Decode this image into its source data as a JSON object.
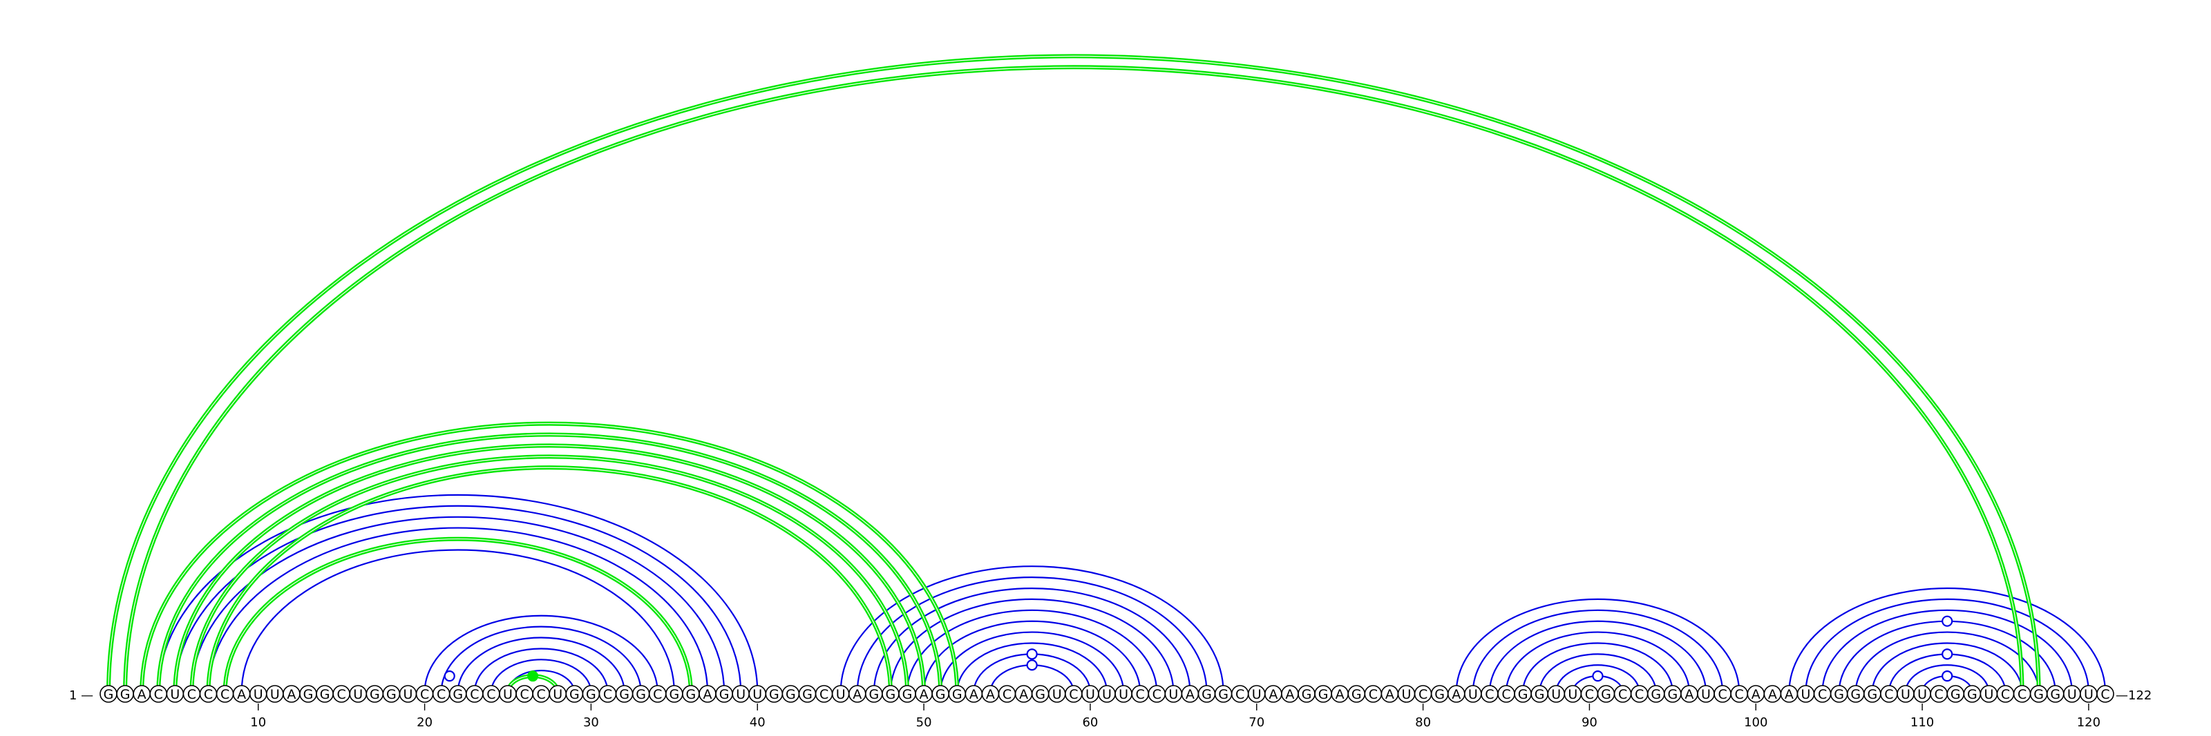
{
  "sequence": "GGACUCCCAUUAGGCUGGUCCGCCUCCUGGCGGCGGAGUUGGGCUAGGGAGGAACAGUCUUUCCUAGGCUAAGGAGCAUCGAUCCGGUUCGCCGGAUCCAAAUCGGGCUUCGGUCCGGUUC",
  "start_label": "1 —",
  "end_label": "—122",
  "ticks": [
    10,
    20,
    30,
    40,
    50,
    60,
    70,
    80,
    90,
    100,
    110,
    120
  ],
  "colors": {
    "blue": "#0000e6",
    "green": "#00e600"
  },
  "pairs": {
    "blue": [
      [
        4,
        40
      ],
      [
        5,
        39
      ],
      [
        6,
        38
      ],
      [
        7,
        37
      ],
      [
        8,
        36
      ],
      [
        9,
        35
      ],
      [
        20,
        34
      ],
      [
        21,
        33
      ],
      [
        22,
        32
      ],
      [
        23,
        31
      ],
      [
        24,
        30
      ],
      [
        25,
        29
      ],
      [
        45,
        68
      ],
      [
        46,
        67
      ],
      [
        47,
        66
      ],
      [
        48,
        65
      ],
      [
        49,
        64
      ],
      [
        50,
        63
      ],
      [
        51,
        62
      ],
      [
        52,
        61
      ],
      [
        53,
        60
      ],
      [
        54,
        59
      ],
      [
        82,
        99
      ],
      [
        83,
        98
      ],
      [
        84,
        97
      ],
      [
        85,
        96
      ],
      [
        86,
        95
      ],
      [
        87,
        94
      ],
      [
        88,
        93
      ],
      [
        89,
        92
      ],
      [
        102,
        121
      ],
      [
        103,
        120
      ],
      [
        104,
        119
      ],
      [
        105,
        118
      ],
      [
        106,
        117
      ],
      [
        107,
        116
      ],
      [
        108,
        115
      ],
      [
        109,
        114
      ],
      [
        110,
        113
      ]
    ],
    "green": [
      [
        1,
        117
      ],
      [
        2,
        116
      ],
      [
        3,
        52
      ],
      [
        4,
        51
      ],
      [
        5,
        50
      ],
      [
        6,
        49
      ],
      [
        7,
        48
      ],
      [
        8,
        36
      ],
      [
        25,
        28
      ]
    ]
  },
  "markers": {
    "open": [
      {
        "i": 20,
        "j": 23
      },
      {
        "i": 53,
        "j": 60
      },
      {
        "i": 54,
        "j": 59
      },
      {
        "i": 89,
        "j": 92
      },
      {
        "i": 105,
        "j": 118
      },
      {
        "i": 108,
        "j": 115
      },
      {
        "i": 110,
        "j": 113
      }
    ],
    "filled": [
      {
        "i": 25,
        "j": 28
      }
    ]
  }
}
